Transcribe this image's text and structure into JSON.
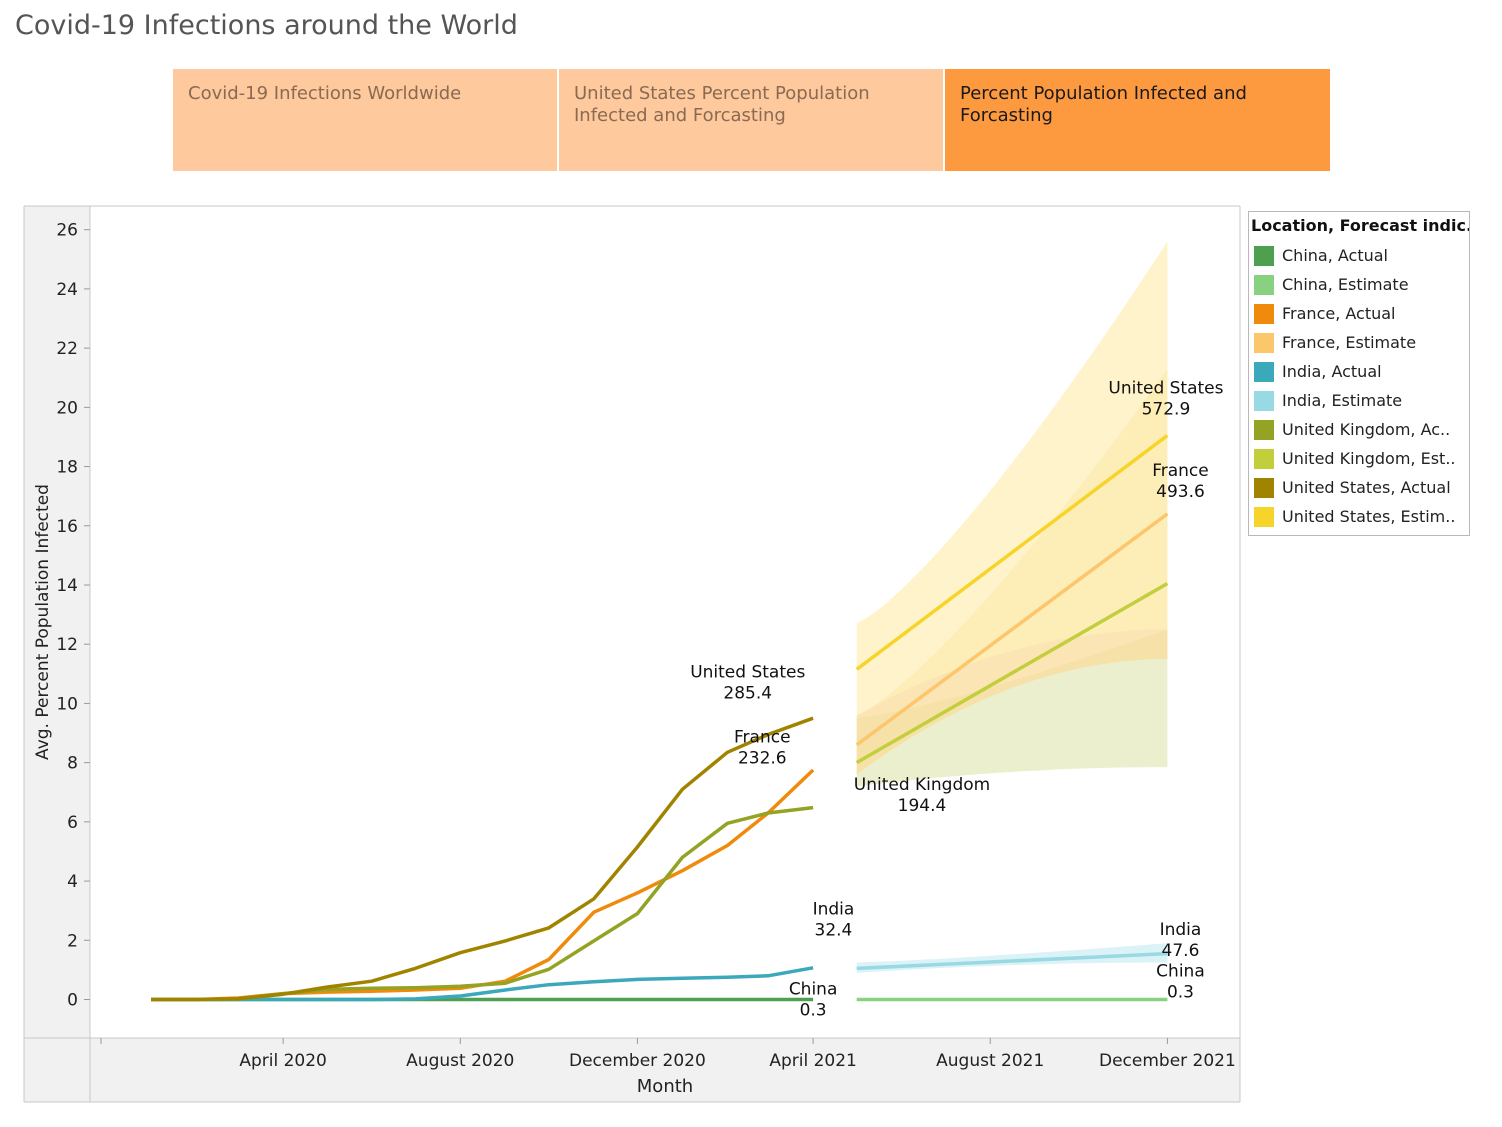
{
  "page_title": "Covid-19 Infections around the World",
  "tabs": [
    {
      "label": "Covid-19 Infections Worldwide",
      "active": false
    },
    {
      "label": "United States Percent Population Infected and Forcasting",
      "active": false
    },
    {
      "label": "Percent Population Infected and Forcasting",
      "active": true
    }
  ],
  "legend": {
    "title": "Location, Forecast indic..",
    "items": [
      {
        "label": "China, Actual",
        "color": "#4e9f50"
      },
      {
        "label": "China, Estimate",
        "color": "#87d180"
      },
      {
        "label": "France, Actual",
        "color": "#ef8a0c"
      },
      {
        "label": "France, Estimate",
        "color": "#fcc66d"
      },
      {
        "label": "India, Actual",
        "color": "#3ca8bc"
      },
      {
        "label": "India, Estimate",
        "color": "#98d9e4"
      },
      {
        "label": "United Kingdom, Ac..",
        "color": "#94a323"
      },
      {
        "label": "United Kingdom, Est..",
        "color": "#c3ce3d"
      },
      {
        "label": "United States, Actual",
        "color": "#a08400"
      },
      {
        "label": "United States, Estim..",
        "color": "#f7d42a"
      }
    ]
  },
  "chart_data": {
    "type": "line",
    "xlabel": "Month",
    "ylabel": "Avg. Percent Population Infected",
    "ylim": [
      -1.3,
      26.8
    ],
    "yticks": [
      0,
      2,
      4,
      6,
      8,
      10,
      12,
      14,
      16,
      18,
      20,
      22,
      24,
      26
    ],
    "xlim": [
      "2019-11-20",
      "2022-01-20"
    ],
    "xticks": [
      {
        "label": "April 2020",
        "date": "2020-04-01"
      },
      {
        "label": "August 2020",
        "date": "2020-08-01"
      },
      {
        "label": "December 2020",
        "date": "2020-12-01"
      },
      {
        "label": "April 2021",
        "date": "2021-04-01"
      },
      {
        "label": "August 2021",
        "date": "2021-08-01"
      },
      {
        "label": "December 2021",
        "date": "2021-12-01"
      }
    ],
    "actual_months": [
      "2020-01-01",
      "2020-02-01",
      "2020-03-01",
      "2020-04-01",
      "2020-05-01",
      "2020-06-01",
      "2020-07-01",
      "2020-08-01",
      "2020-09-01",
      "2020-10-01",
      "2020-11-01",
      "2020-12-01",
      "2021-01-01",
      "2021-02-01",
      "2021-03-01",
      "2021-04-01"
    ],
    "series": [
      {
        "name": "China, Actual",
        "color": "#4e9f50",
        "kind": "actual",
        "values": [
          0,
          0,
          0,
          0,
          0,
          0,
          0,
          0,
          0,
          0,
          0,
          0,
          0,
          0,
          0,
          0
        ]
      },
      {
        "name": "France, Actual",
        "color": "#ef8a0c",
        "kind": "actual",
        "values": [
          0,
          0,
          0.05,
          0.2,
          0.25,
          0.28,
          0.32,
          0.38,
          0.62,
          1.35,
          2.95,
          3.6,
          4.35,
          5.2,
          6.3,
          7.75
        ]
      },
      {
        "name": "India, Actual",
        "color": "#3ca8bc",
        "kind": "actual",
        "values": [
          0,
          0,
          0,
          0,
          0,
          0,
          0.02,
          0.12,
          0.32,
          0.5,
          0.6,
          0.68,
          0.72,
          0.75,
          0.8,
          1.07
        ]
      },
      {
        "name": "United Kingdom, Ac..",
        "color": "#94a323",
        "kind": "actual",
        "values": [
          0,
          0,
          0.02,
          0.2,
          0.34,
          0.38,
          0.4,
          0.45,
          0.55,
          1.02,
          1.98,
          2.9,
          4.8,
          5.95,
          6.3,
          6.48
        ]
      },
      {
        "name": "United States, Actual",
        "color": "#a08400",
        "kind": "actual",
        "values": [
          0,
          0,
          0.02,
          0.18,
          0.42,
          0.62,
          1.05,
          1.58,
          1.98,
          2.42,
          3.4,
          5.15,
          7.1,
          8.35,
          8.95,
          9.5
        ]
      },
      {
        "name": "China, Estimate",
        "color": "#87d180",
        "kind": "estimate",
        "x": [
          "2021-05-01",
          "2021-12-01"
        ],
        "values": [
          0,
          0
        ],
        "lower": [
          0,
          0
        ],
        "upper": [
          0,
          0
        ]
      },
      {
        "name": "India, Estimate",
        "color": "#98d9e4",
        "kind": "estimate",
        "x": [
          "2021-05-01",
          "2021-12-01"
        ],
        "values": [
          1.05,
          1.55
        ],
        "lower": [
          0.9,
          1.25
        ],
        "upper": [
          1.25,
          1.9
        ]
      },
      {
        "name": "United Kingdom, Est..",
        "color": "#c3ce3d",
        "kind": "estimate",
        "x": [
          "2021-05-01",
          "2021-12-01"
        ],
        "values": [
          8.0,
          14.05
        ],
        "lower": [
          7.2,
          7.85
        ],
        "upper": [
          9.5,
          12.5
        ],
        "band_fill": "#e4eabc"
      },
      {
        "name": "France, Estimate",
        "color": "#fcc66d",
        "kind": "estimate",
        "x": [
          "2021-05-01",
          "2021-12-01"
        ],
        "values": [
          8.6,
          16.4
        ],
        "lower": [
          7.6,
          11.5
        ],
        "upper": [
          9.6,
          21.3
        ],
        "band_fill": "#fadc9c"
      },
      {
        "name": "United States, Estim..",
        "color": "#f7d42a",
        "kind": "estimate",
        "x": [
          "2021-05-01",
          "2021-12-01"
        ],
        "values": [
          11.15,
          19.05
        ],
        "lower": [
          9.6,
          12.5
        ],
        "upper": [
          12.7,
          25.6
        ],
        "band_fill": "#fdefb8"
      }
    ],
    "annotations": [
      {
        "name": "United States",
        "value": "285.4",
        "date": "2021-02-15",
        "y": 10.2
      },
      {
        "name": "France",
        "value": "232.6",
        "date": "2021-02-25",
        "y": 8.0
      },
      {
        "name": "United Kingdom",
        "value": "194.4",
        "date": "2021-06-15",
        "y": 6.4
      },
      {
        "name": "India",
        "value": "32.4",
        "date": "2021-04-15",
        "y": 2.2
      },
      {
        "name": "China",
        "value": "0.3",
        "date": "2021-04-01",
        "y": -0.5
      },
      {
        "name": "United States",
        "value": "572.9",
        "date": "2021-11-30",
        "y": 19.8
      },
      {
        "name": "France",
        "value": "493.6",
        "date": "2021-12-10",
        "y": 17.0
      },
      {
        "name": "India",
        "value": "47.6",
        "date": "2021-12-10",
        "y": 1.5
      },
      {
        "name": "China",
        "value": "0.3",
        "date": "2021-12-10",
        "y": 0.1
      }
    ]
  }
}
